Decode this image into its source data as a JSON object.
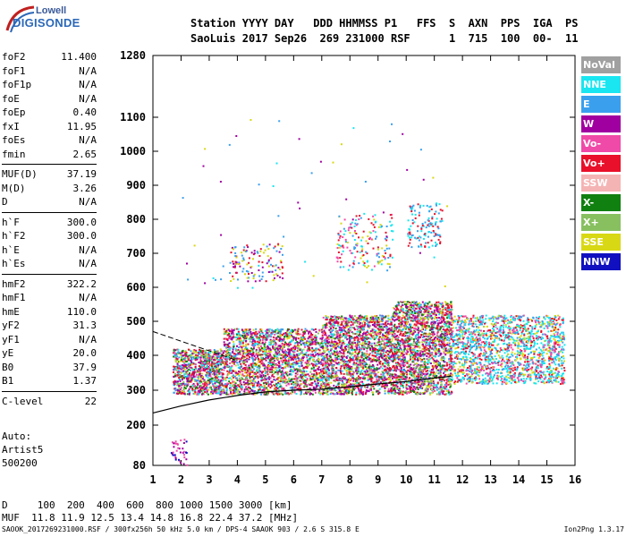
{
  "logo": {
    "brand_top": "Lowell",
    "brand_bottom": "DIGISONDE"
  },
  "header": {
    "line1": "Station YYYY DAY   DDD HHMMSS P1   FFS  S  AXN  PPS  IGA  PS",
    "line2": "SaoLuis 2017 Sep26  269 231000 RSF      1  715  100  00-  11"
  },
  "params": {
    "group1": [
      {
        "label": "foF2",
        "value": "11.400"
      },
      {
        "label": "foF1",
        "value": "N/A"
      },
      {
        "label": "foF1p",
        "value": "N/A"
      },
      {
        "label": "foE",
        "value": "N/A"
      },
      {
        "label": "foEp",
        "value": "0.40"
      },
      {
        "label": "fxI",
        "value": "11.95"
      },
      {
        "label": "foEs",
        "value": "N/A"
      },
      {
        "label": "fmin",
        "value": "2.65"
      }
    ],
    "group2": [
      {
        "label": "MUF(D)",
        "value": "37.19"
      },
      {
        "label": "M(D)",
        "value": "3.26"
      },
      {
        "label": "D",
        "value": "N/A"
      }
    ],
    "group3": [
      {
        "label": "h`F",
        "value": "300.0"
      },
      {
        "label": "h`F2",
        "value": "300.0"
      },
      {
        "label": "h`E",
        "value": "N/A"
      },
      {
        "label": "h`Es",
        "value": "N/A"
      }
    ],
    "group4": [
      {
        "label": "hmF2",
        "value": "322.2"
      },
      {
        "label": "hmF1",
        "value": "N/A"
      },
      {
        "label": "hmE",
        "value": "110.0"
      },
      {
        "label": "yF2",
        "value": "31.3"
      },
      {
        "label": "yF1",
        "value": "N/A"
      },
      {
        "label": "yE",
        "value": "20.0"
      },
      {
        "label": "B0",
        "value": "37.9"
      },
      {
        "label": "B1",
        "value": "1.37"
      }
    ],
    "group5": [
      {
        "label": "C-level",
        "value": "22"
      }
    ]
  },
  "misc": {
    "line1": "Auto:",
    "line2": "Artist5",
    "line3": "500200"
  },
  "legend": [
    {
      "label": "NoVal",
      "color": "#a0a0a0"
    },
    {
      "label": "NNE",
      "color": "#19e6f0"
    },
    {
      "label": "E",
      "color": "#3aa0ee"
    },
    {
      "label": "W",
      "color": "#a000a0"
    },
    {
      "label": "Vo-",
      "color": "#f04aa8"
    },
    {
      "label": "Vo+",
      "color": "#e8102a"
    },
    {
      "label": "SSW",
      "color": "#f5b4b4"
    },
    {
      "label": "X-",
      "color": "#108010"
    },
    {
      "label": "X+",
      "color": "#88c060"
    },
    {
      "label": "SSE",
      "color": "#d8d814"
    },
    {
      "label": "NNW",
      "color": "#1010c0"
    }
  ],
  "chart_data": {
    "type": "scatter",
    "title": "",
    "xlabel": "",
    "ylabel": "",
    "xlim": [
      1,
      16
    ],
    "ylim": [
      80,
      1280
    ],
    "x_ticks": [
      1,
      2,
      3,
      4,
      5,
      6,
      7,
      8,
      9,
      10,
      11,
      12,
      13,
      14,
      15,
      16
    ],
    "y_ticks": [
      80,
      200,
      300,
      400,
      500,
      600,
      700,
      800,
      900,
      1000,
      1100,
      1280
    ],
    "y_scale": "log-like",
    "grid": false,
    "legend_position": "right",
    "series": [
      {
        "label_key": "trace",
        "points": [
          [
            1.0,
            235
          ],
          [
            2,
            255
          ],
          [
            3,
            272
          ],
          [
            4,
            285
          ],
          [
            5,
            295
          ],
          [
            6,
            300
          ],
          [
            7,
            303
          ],
          [
            8,
            310
          ],
          [
            9,
            318
          ],
          [
            10,
            325
          ],
          [
            11,
            335
          ],
          [
            11.6,
            340
          ]
        ]
      }
    ]
  },
  "footer": {
    "line1": "D     100  200  400  600  800 1000 1500 3000 [km]",
    "line2": "MUF  11.8 11.9 12.5 13.4 14.8 16.8 22.4 37.2 [MHz]"
  },
  "bottom": {
    "left": "SAOOK_2017269231000.RSF / 300fx256h 50 kHz 5.0 km / DPS-4 SAAOK 903 / 2.6 S 315.8 E",
    "right": "Ion2Png 1.3.17"
  }
}
